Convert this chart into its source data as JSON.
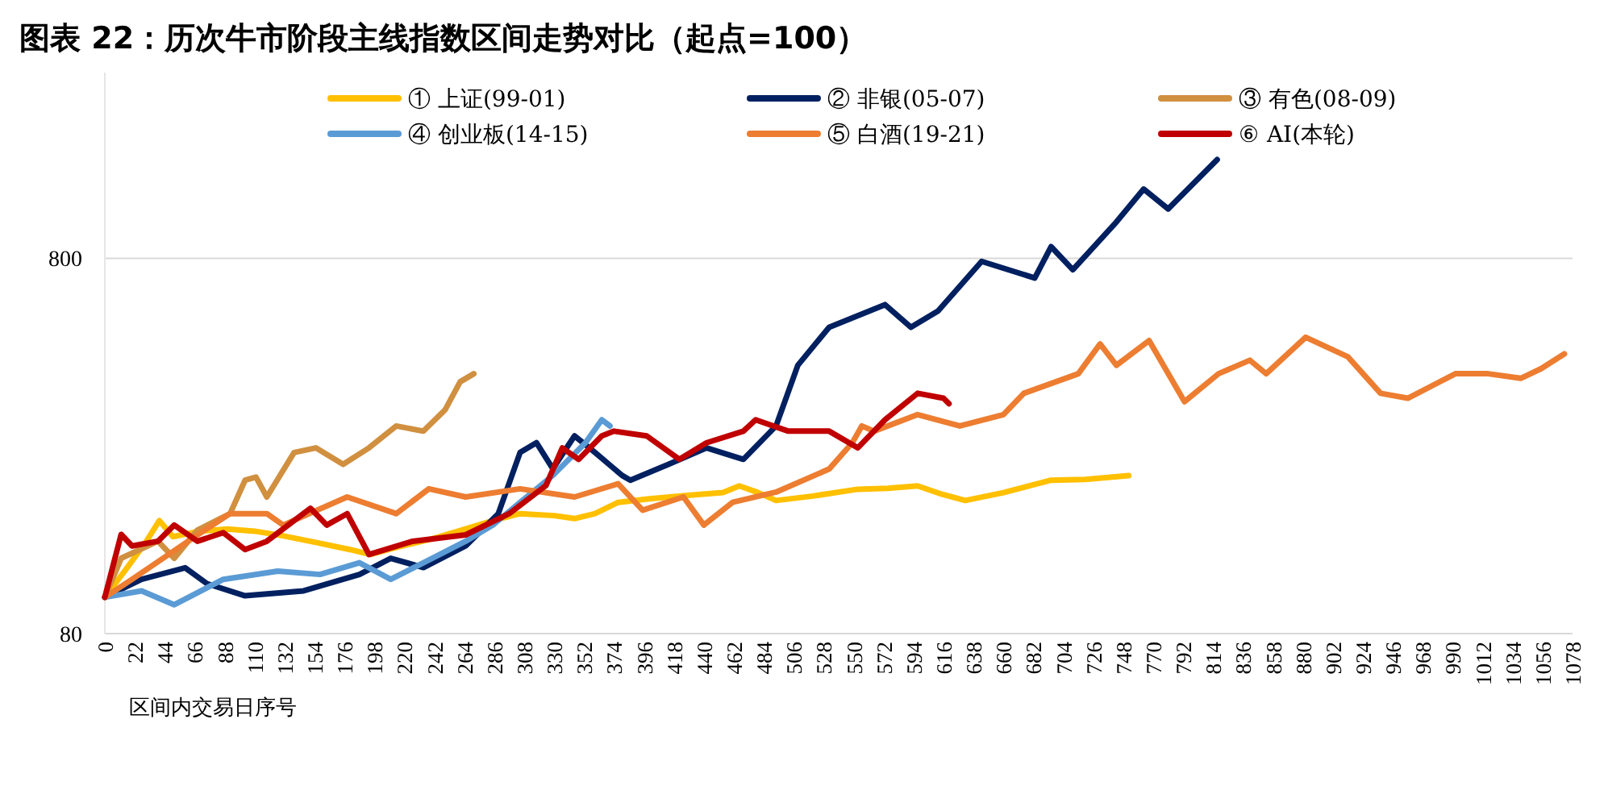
{
  "chart_data": {
    "type": "line",
    "title": "图表 22：历次牛市阶段主线指数区间走势对比（起点=100）",
    "xlabel": "区间内交易日序号",
    "log": "y",
    "grid": "y",
    "legend": "top",
    "line_style": "solid",
    "marker": "none",
    "xlim": [
      0,
      1078
    ],
    "ylim": [
      80,
      2500
    ],
    "xticks": [
      0,
      22,
      44,
      66,
      88,
      110,
      132,
      154,
      176,
      198,
      220,
      242,
      264,
      286,
      308,
      330,
      352,
      374,
      396,
      418,
      440,
      462,
      484,
      506,
      528,
      550,
      572,
      594,
      616,
      638,
      660,
      682,
      704,
      726,
      748,
      770,
      792,
      814,
      836,
      858,
      880,
      902,
      924,
      946,
      968,
      990,
      1012,
      1034,
      1056,
      1078
    ],
    "yticks": [
      80,
      800
    ],
    "series": [
      {
        "name": "① 上证(99-01)",
        "color": "#ffc000",
        "x": [
          0,
          15,
          30,
          40,
          50,
          70,
          90,
          110,
          130,
          155,
          180,
          195,
          215,
          240,
          262,
          285,
          305,
          330,
          345,
          360,
          377,
          400,
          430,
          454,
          466,
          480,
          493,
          520,
          553,
          575,
          597,
          615,
          632,
          660,
          695,
          720,
          752
        ],
        "values": [
          100,
          118,
          140,
          160,
          145,
          150,
          152,
          150,
          146,
          140,
          134,
          130,
          136,
          143,
          151,
          160,
          167,
          165,
          162,
          167,
          179,
          183,
          187,
          190,
          198,
          190,
          181,
          186,
          194,
          195,
          198,
          188,
          181,
          190,
          205,
          206,
          211
        ]
      },
      {
        "name": "② 非银(05-07)",
        "color": "#002060",
        "x": [
          0,
          27,
          59,
          75,
          103,
          146,
          187,
          210,
          234,
          265,
          289,
          305,
          317,
          329,
          345,
          360,
          380,
          386,
          414,
          442,
          469,
          493,
          509,
          532,
          573,
          592,
          612,
          644,
          683,
          695,
          711,
          743,
          763,
          781,
          817
        ],
        "values": [
          100,
          111.6,
          119.8,
          108.7,
          100.9,
          104,
          115,
          127,
          120,
          137,
          167,
          243,
          258,
          220,
          269,
          243,
          211,
          205,
          226,
          250,
          233,
          286,
          415,
          524,
          602,
          524,
          579,
          785,
          709,
          859,
          746,
          1000,
          1223,
          1083,
          1466
        ]
      },
      {
        "name": "③ 有色(08-09)",
        "color": "#d09040",
        "x": [
          0,
          12,
          39,
          51,
          68,
          92,
          103,
          111,
          119,
          139,
          155,
          175,
          194,
          214,
          234,
          250,
          261,
          271
        ],
        "values": [
          100,
          127,
          141,
          127,
          151,
          167,
          205,
          209,
          185,
          243,
          250,
          226,
          250,
          286,
          277,
          316,
          375,
          394
        ]
      },
      {
        "name": "④ 创业板(14-15)",
        "color": "#5b9bd5",
        "x": [
          0,
          27,
          51,
          87,
          127,
          158,
          187,
          210,
          234,
          265,
          285,
          305,
          329,
          353,
          365,
          371
        ],
        "values": [
          100,
          104,
          95.5,
          111.6,
          117.4,
          115,
          123.6,
          111.6,
          123.6,
          141,
          155.7,
          179,
          211,
          258,
          297,
          286
        ]
      },
      {
        "name": "⑤ 白酒(19-21)",
        "color": "#ed7d31",
        "x": [
          0,
          20,
          68,
          92,
          119,
          131,
          178,
          214,
          238,
          265,
          305,
          345,
          377,
          395,
          425,
          440,
          461,
          493,
          532,
          549,
          556,
          565,
          597,
          628,
          660,
          675,
          715,
          731,
          743,
          767,
          793,
          818,
          841,
          853,
          882,
          913,
          937,
          957,
          992,
          1016,
          1040,
          1055,
          1072
        ],
        "values": [
          100,
          111.6,
          146.6,
          167,
          167,
          155.7,
          185,
          167,
          194.5,
          185,
          194.5,
          185,
          200.6,
          170.6,
          185,
          155.7,
          179,
          190.6,
          219.6,
          258,
          286,
          277,
          306.6,
          286,
          306.6,
          349.5,
          394,
          473,
          415,
          483,
          332,
          394,
          428,
          394,
          492.7,
          437,
          349.5,
          339,
          394,
          394,
          383,
          406.6,
          445
        ]
      },
      {
        "name": "⑥ AI(本轮)",
        "color": "#c00000",
        "x": [
          0,
          12,
          20,
          39,
          51,
          68,
          87,
          103,
          119,
          151,
          163,
          178,
          194,
          226,
          265,
          297,
          324,
          336,
          348,
          365,
          374,
          398,
          422,
          442,
          469,
          478,
          502,
          532,
          553,
          573,
          597,
          616,
          620
        ],
        "values": [
          100,
          147,
          137,
          141,
          155.7,
          141,
          148.6,
          134,
          141,
          172.6,
          155.7,
          167,
          130,
          141,
          146.6,
          167,
          198.5,
          250,
          233,
          269,
          277,
          269,
          233,
          258,
          277,
          297,
          277,
          277,
          250,
          297,
          349.5,
          339,
          328
        ]
      }
    ]
  }
}
